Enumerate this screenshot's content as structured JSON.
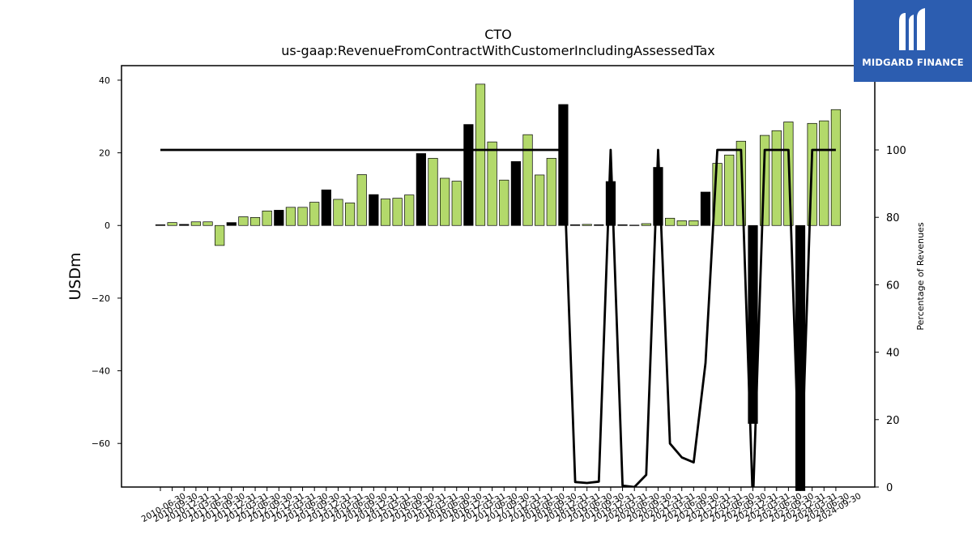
{
  "brand": {
    "name": "MIDGARD FINANCE",
    "bg_color": "#2c5db0"
  },
  "chart_data": {
    "type": "bar",
    "title": "CTO",
    "subtitle": "us-gaap:RevenueFromContractWithCustomerIncludingAssessedTax",
    "ylabel": "USDm",
    "y2label": "Percentage of Revenues",
    "ylim": [
      -72,
      44
    ],
    "y2lim": [
      0,
      125
    ],
    "yticks": [
      -60,
      -40,
      -20,
      0,
      20,
      40
    ],
    "y2ticks": [
      0,
      20,
      40,
      60,
      80,
      100
    ],
    "colors": {
      "positive_growth": "#b3d96b",
      "negative_growth": "#000000",
      "line": "#000000"
    },
    "categories": [
      "2010-06-30",
      "2010-09-30",
      "2010-12-31",
      "2011-03-31",
      "2011-06-30",
      "2011-09-30",
      "2011-12-31",
      "2012-03-31",
      "2012-06-30",
      "2012-09-30",
      "2012-12-31",
      "2013-03-31",
      "2013-06-30",
      "2013-09-30",
      "2013-12-31",
      "2014-03-31",
      "2014-06-30",
      "2014-09-30",
      "2014-12-31",
      "2015-03-31",
      "2015-06-30",
      "2015-09-30",
      "2015-12-31",
      "2016-03-31",
      "2016-06-30",
      "2016-09-30",
      "2016-12-31",
      "2017-03-31",
      "2017-06-30",
      "2017-09-30",
      "2017-12-31",
      "2018-03-31",
      "2018-06-30",
      "2018-09-30",
      "2018-12-31",
      "2019-03-31",
      "2019-06-30",
      "2019-09-30",
      "2019-12-31",
      "2020-03-31",
      "2020-06-30",
      "2020-09-30",
      "2020-12-31",
      "2021-03-31",
      "2021-06-30",
      "2021-09-30",
      "2021-12-31",
      "2022-03-31",
      "2022-06-30",
      "2022-09-30",
      "2022-12-31",
      "2023-03-31",
      "2023-06-30",
      "2023-09-30",
      "2023-12-31",
      "2024-03-31",
      "2024-06-30",
      "2024-09-30"
    ],
    "bar_values": [
      0.2,
      0.8,
      0.3,
      1.0,
      1.0,
      -5.5,
      0.8,
      2.4,
      2.2,
      4.0,
      4.2,
      5.0,
      5.0,
      6.4,
      9.8,
      7.2,
      6.2,
      14.0,
      8.5,
      7.3,
      7.5,
      8.4,
      19.8,
      18.5,
      13.0,
      12.2,
      27.8,
      38.9,
      23.0,
      12.5,
      17.6,
      25.0,
      13.9,
      18.5,
      33.3,
      0.2,
      0.3,
      0.2,
      12.1,
      0.2,
      0.1,
      0.5,
      16.0,
      2.0,
      1.3,
      1.3,
      9.2,
      17.1,
      19.4,
      23.2,
      -54.5,
      24.8,
      26.1,
      28.5,
      -73.0,
      28.1,
      28.8,
      31.9
    ],
    "bar_colors": [
      "k",
      "g",
      "k",
      "g",
      "g",
      "g",
      "k",
      "g",
      "g",
      "g",
      "k",
      "g",
      "g",
      "g",
      "k",
      "g",
      "g",
      "g",
      "k",
      "g",
      "g",
      "g",
      "k",
      "g",
      "g",
      "g",
      "k",
      "g",
      "g",
      "g",
      "k",
      "g",
      "g",
      "g",
      "k",
      "k",
      "g",
      "k",
      "k",
      "k",
      "k",
      "g",
      "k",
      "g",
      "g",
      "g",
      "k",
      "g",
      "g",
      "g",
      "k",
      "g",
      "g",
      "g",
      "k",
      "g",
      "g",
      "g"
    ],
    "line_name": "Percentage of Revenues",
    "line_values": [
      100,
      100,
      100,
      100,
      100,
      100,
      100,
      100,
      100,
      100,
      100,
      100,
      100,
      100,
      100,
      100,
      100,
      100,
      100,
      100,
      100,
      100,
      100,
      100,
      100,
      100,
      100,
      100,
      100,
      100,
      100,
      100,
      100,
      100,
      100,
      1.5,
      1.2,
      1.6,
      100,
      0.4,
      0,
      3.6,
      100,
      12.9,
      8.8,
      7.3,
      36.8,
      100,
      100,
      100,
      -5,
      100,
      100,
      100,
      -5,
      100,
      100,
      100
    ],
    "grid": false,
    "legend": "none"
  }
}
